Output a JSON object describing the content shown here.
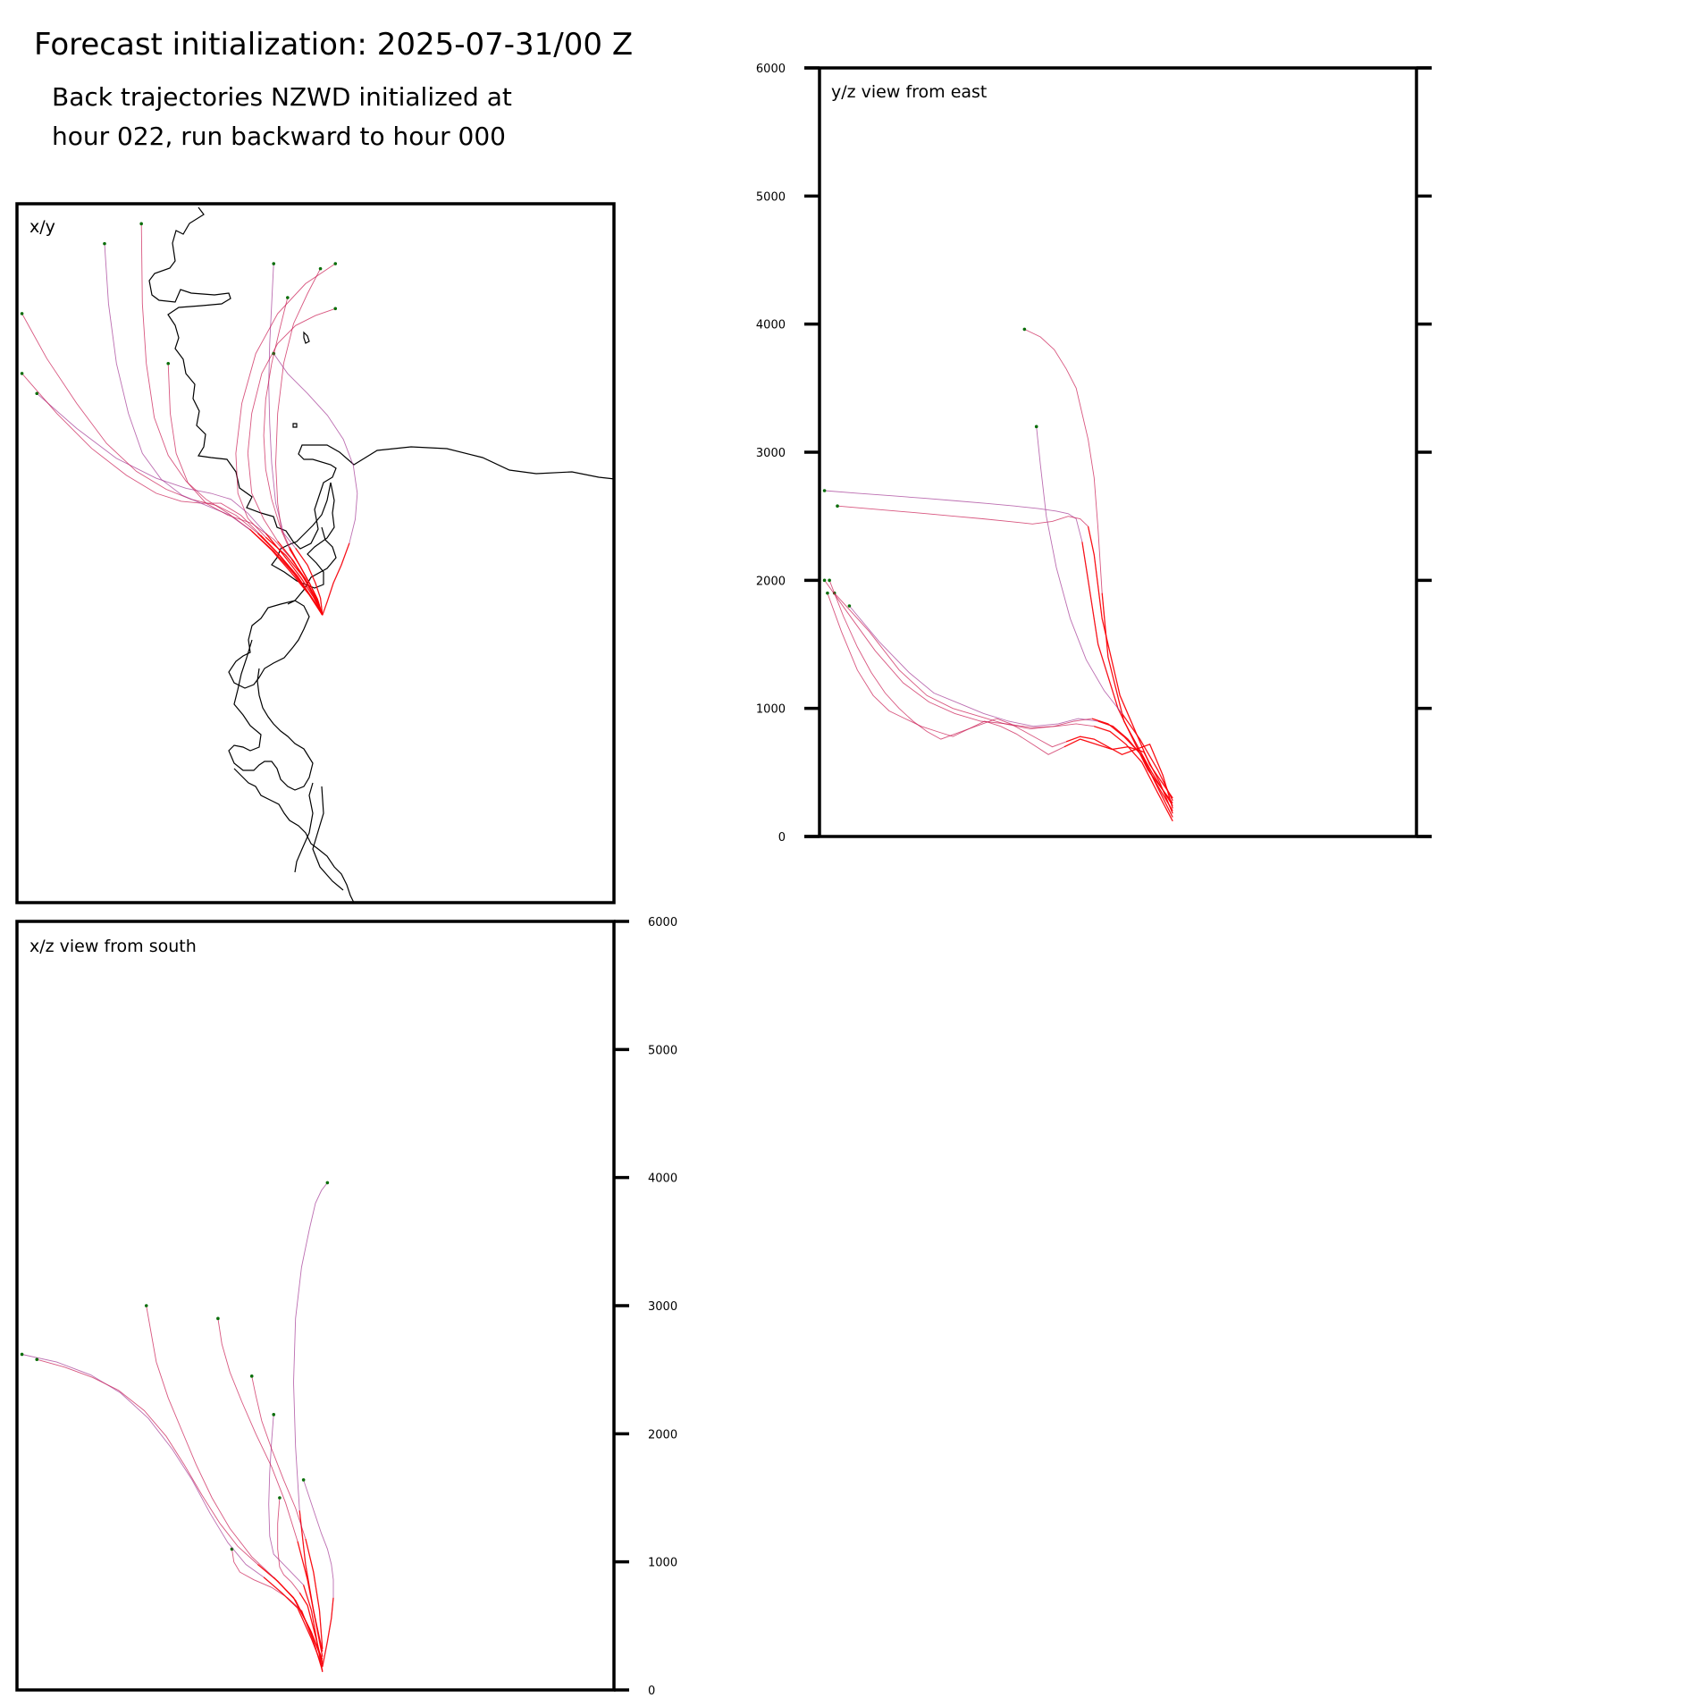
{
  "header": {
    "title": "Forecast initialization: 2025-07-31/00 Z",
    "subtitle_line_1": "Back trajectories NZWD initialized at",
    "subtitle_line_2": "hour 022, run backward to hour 000"
  },
  "colors": {
    "trajectory_recent": "#ff0000",
    "trajectory_mid": "#c8104a",
    "trajectory_old": "#a03090",
    "endpoint_marker": "#0a6e0a",
    "coastline": "#000000",
    "axes": "#000000"
  },
  "chart_data": [
    {
      "type": "line",
      "panel_label": "x/y",
      "view": "map plan view",
      "xlabel": "",
      "ylabel": "",
      "grid": false,
      "legend": "none",
      "overlay": "coastline",
      "coastline_extent_km": [
        [
          0,
          600
        ],
        [
          0,
          700
        ]
      ],
      "origin_km": [
        307,
        412
      ],
      "series": [
        {
          "x": [
            307,
            305,
            300,
            292,
            280,
            268,
            260,
            256,
            254,
            253,
            254,
            256,
            258
          ],
          "y": [
            412,
            395,
            380,
            362,
            345,
            330,
            300,
            260,
            220,
            180,
            140,
            100,
            60
          ]
        },
        {
          "x": [
            307,
            302,
            294,
            284,
            274,
            266,
            262,
            260,
            262,
            268,
            278,
            292,
            305
          ],
          "y": [
            412,
            396,
            380,
            362,
            346,
            328,
            300,
            260,
            210,
            160,
            120,
            90,
            65
          ]
        },
        {
          "x": [
            307,
            300,
            288,
            270,
            250,
            232,
            222,
            220,
            226,
            240,
            262,
            290,
            320
          ],
          "y": [
            412,
            394,
            374,
            352,
            334,
            315,
            290,
            250,
            200,
            150,
            110,
            80,
            60
          ]
        },
        {
          "x": [
            307,
            298,
            285,
            268,
            250,
            232,
            215,
            195,
            170,
            140,
            100,
            60,
            20
          ],
          "y": [
            412,
            394,
            374,
            352,
            330,
            310,
            296,
            290,
            285,
            275,
            255,
            225,
            190
          ]
        },
        {
          "x": [
            307,
            296,
            282,
            264,
            245,
            225,
            205,
            185,
            165,
            140,
            110,
            75,
            40,
            5
          ],
          "y": [
            412,
            394,
            373,
            352,
            332,
            312,
            300,
            300,
            298,
            290,
            272,
            245,
            210,
            170
          ]
        },
        {
          "x": [
            307,
            296,
            280,
            262,
            242,
            220,
            200,
            175,
            150,
            120,
            90,
            60,
            30,
            5
          ],
          "y": [
            412,
            394,
            372,
            350,
            330,
            312,
            302,
            296,
            286,
            268,
            240,
            200,
            155,
            110
          ]
        },
        {
          "x": [
            307,
            294,
            278,
            258,
            236,
            214,
            190,
            166,
            145,
            126,
            112,
            100,
            92,
            88
          ],
          "y": [
            412,
            392,
            370,
            348,
            328,
            312,
            302,
            292,
            276,
            250,
            210,
            160,
            100,
            40
          ]
        },
        {
          "x": [
            307,
            294,
            276,
            256,
            234,
            212,
            190,
            170,
            152,
            138,
            130,
            126,
            125
          ],
          "y": [
            412,
            392,
            370,
            347,
            326,
            310,
            296,
            278,
            252,
            214,
            160,
            100,
            20
          ]
        },
        {
          "x": [
            307,
            300,
            290,
            278,
            262,
            248,
            236,
            232,
            236,
            246,
            262,
            280,
            300,
            320
          ],
          "y": [
            412,
            396,
            378,
            358,
            338,
            316,
            290,
            250,
            210,
            170,
            140,
            122,
            112,
            105
          ]
        },
        {
          "x": [
            307,
            312,
            318,
            326,
            334,
            340,
            342,
            338,
            328,
            312,
            292,
            272,
            258
          ],
          "y": [
            412,
            398,
            380,
            362,
            340,
            316,
            290,
            262,
            236,
            212,
            190,
            170,
            150
          ]
        },
        {
          "x": [
            307,
            300,
            290,
            276,
            258,
            236,
            212,
            190,
            172,
            160,
            154,
            152
          ],
          "y": [
            412,
            395,
            376,
            356,
            336,
            320,
            312,
            300,
            280,
            250,
            210,
            160
          ]
        },
        {
          "x": [
            307,
            302,
            294,
            284,
            274,
            264,
            256,
            250,
            248,
            250,
            256,
            264,
            272
          ],
          "y": [
            412,
            396,
            380,
            362,
            344,
            322,
            296,
            266,
            232,
            196,
            160,
            126,
            94
          ]
        }
      ]
    },
    {
      "type": "line",
      "panel_label": "x/z view from south",
      "xlabel": "",
      "ylabel": "",
      "ylim": [
        0,
        6000
      ],
      "yticks": [
        0,
        1000,
        2000,
        3000,
        4000,
        5000,
        6000
      ],
      "grid": false,
      "legend": "none",
      "x_extent_km": [
        0,
        600
      ],
      "series": [
        {
          "x": [
            307,
            302,
            296,
            288,
            278,
            268,
            258,
            254,
            253,
            254,
            256,
            258
          ],
          "z": [
            140,
            360,
            620,
            820,
            900,
            980,
            1060,
            1200,
            1450,
            1700,
            1950,
            2150
          ]
        },
        {
          "x": [
            307,
            300,
            292,
            284,
            276,
            268,
            264,
            262,
            262,
            264
          ],
          "z": [
            200,
            420,
            660,
            760,
            840,
            900,
            960,
            1100,
            1300,
            1500
          ]
        },
        {
          "x": [
            307,
            298,
            286,
            272,
            256,
            238,
            224,
            218,
            216
          ],
          "z": [
            150,
            380,
            620,
            720,
            800,
            860,
            920,
            1000,
            1100
          ]
        },
        {
          "x": [
            307,
            296,
            282,
            266,
            248,
            230,
            212,
            194,
            176,
            156,
            132,
            104,
            74,
            40,
            5
          ],
          "z": [
            180,
            400,
            640,
            760,
            880,
            980,
            1150,
            1380,
            1640,
            1880,
            2120,
            2320,
            2460,
            2560,
            2620
          ]
        },
        {
          "x": [
            307,
            296,
            280,
            262,
            242,
            222,
            204,
            186,
            168,
            150,
            128,
            102,
            76,
            48,
            20
          ],
          "z": [
            220,
            450,
            700,
            850,
            980,
            1120,
            1300,
            1520,
            1760,
            1980,
            2180,
            2340,
            2440,
            2520,
            2580
          ]
        },
        {
          "x": [
            307,
            294,
            278,
            258,
            236,
            214,
            196,
            180,
            166,
            152,
            140,
            130
          ],
          "z": [
            240,
            480,
            720,
            880,
            1040,
            1260,
            1500,
            1760,
            2020,
            2280,
            2560,
            3000
          ]
        },
        {
          "x": [
            307,
            298,
            290,
            284,
            280,
            278,
            280,
            286,
            294,
            300,
            306,
            312
          ],
          "z": [
            300,
            620,
            980,
            1400,
            1900,
            2400,
            2900,
            3300,
            3600,
            3800,
            3900,
            3960
          ]
        },
        {
          "x": [
            307,
            300,
            292,
            282,
            270,
            256,
            240,
            226,
            214,
            206,
            202
          ],
          "z": [
            260,
            540,
            860,
            1160,
            1460,
            1740,
            2000,
            2250,
            2480,
            2700,
            2900
          ]
        },
        {
          "x": [
            307,
            304,
            298,
            290,
            280,
            268,
            256,
            246,
            240,
            236
          ],
          "z": [
            320,
            620,
            920,
            1180,
            1420,
            1640,
            1880,
            2100,
            2300,
            2450
          ]
        },
        {
          "x": [
            307,
            312,
            316,
            318,
            318,
            316,
            312,
            306,
            300,
            294,
            288
          ],
          "z": [
            180,
            380,
            560,
            720,
            860,
            980,
            1100,
            1220,
            1360,
            1500,
            1640
          ]
        }
      ]
    },
    {
      "type": "line",
      "panel_label": "y/z view from east",
      "xlabel": "",
      "ylabel": "",
      "ylim": [
        0,
        6000
      ],
      "yticks": [
        0,
        1000,
        2000,
        3000,
        4000,
        5000,
        6000
      ],
      "grid": false,
      "legend": "none",
      "y_extent_km": [
        0,
        600
      ],
      "series": [
        {
          "y": [
            355,
            340,
            325,
            310,
            295,
            280,
            260,
            240,
            215,
            190,
            165,
            140,
            115,
            90,
            60,
            30
          ],
          "z": [
            150,
            380,
            620,
            760,
            860,
            900,
            920,
            880,
            860,
            900,
            960,
            1040,
            1120,
            1280,
            1520,
            1800
          ]
        },
        {
          "y": [
            355,
            338,
            322,
            306,
            290,
            274,
            256,
            236,
            212,
            186,
            160,
            134,
            108,
            80,
            50,
            15
          ],
          "z": [
            200,
            420,
            650,
            780,
            880,
            920,
            900,
            860,
            840,
            880,
            940,
            1000,
            1100,
            1300,
            1600,
            1900
          ]
        },
        {
          "y": [
            355,
            340,
            324,
            308,
            292,
            276,
            258,
            238,
            214,
            188,
            162,
            136,
            110,
            84,
            56,
            28,
            5
          ],
          "z": [
            120,
            340,
            580,
            720,
            820,
            860,
            880,
            860,
            850,
            880,
            900,
            960,
            1050,
            1200,
            1450,
            1750,
            2000
          ]
        },
        {
          "y": [
            355,
            330,
            300,
            280,
            270,
            264,
            258,
            250,
            238,
            220,
            196,
            168,
            138,
            106,
            72,
            38,
            5
          ],
          "z": [
            260,
            520,
            1000,
            1500,
            2000,
            2300,
            2480,
            2520,
            2540,
            2560,
            2580,
            2600,
            2620,
            2640,
            2660,
            2680,
            2700
          ]
        },
        {
          "y": [
            355,
            332,
            302,
            284,
            276,
            270,
            262,
            250,
            234,
            214,
            190,
            164,
            136,
            108,
            78,
            48,
            18
          ],
          "z": [
            300,
            560,
            1100,
            1700,
            2200,
            2420,
            2480,
            2500,
            2460,
            2440,
            2460,
            2480,
            2500,
            2520,
            2540,
            2560,
            2580
          ]
        },
        {
          "y": [
            355,
            334,
            306,
            290,
            284,
            280,
            276,
            270,
            264,
            258,
            248,
            236,
            222,
            206
          ],
          "z": [
            240,
            500,
            900,
            1400,
            1900,
            2400,
            2800,
            3100,
            3300,
            3500,
            3650,
            3800,
            3900,
            3960
          ]
        },
        {
          "y": [
            355,
            340,
            322,
            304,
            286,
            268,
            252,
            238,
            228,
            222,
            218
          ],
          "z": [
            280,
            520,
            760,
            960,
            1140,
            1380,
            1700,
            2100,
            2500,
            2900,
            3200
          ]
        },
        {
          "y": [
            355,
            342,
            326,
            310,
            294,
            278,
            262,
            246,
            230,
            214,
            198,
            182,
            166,
            150,
            134,
            118,
            102,
            86,
            70,
            54,
            38,
            22,
            8
          ],
          "z": [
            180,
            420,
            660,
            700,
            680,
            720,
            760,
            700,
            640,
            720,
            800,
            860,
            900,
            840,
            780,
            820,
            860,
            920,
            980,
            1100,
            1300,
            1600,
            1900
          ]
        },
        {
          "y": [
            355,
            345,
            332,
            318,
            304,
            290,
            276,
            262,
            248,
            234,
            220,
            206,
            192,
            178,
            164,
            150,
            136,
            122,
            108,
            94,
            80,
            66,
            52,
            38,
            24,
            10
          ],
          "z": [
            220,
            480,
            720,
            680,
            640,
            700,
            760,
            780,
            740,
            700,
            760,
            820,
            880,
            920,
            880,
            840,
            800,
            760,
            820,
            900,
            1000,
            1120,
            1280,
            1480,
            1720,
            2000
          ]
        }
      ]
    }
  ]
}
